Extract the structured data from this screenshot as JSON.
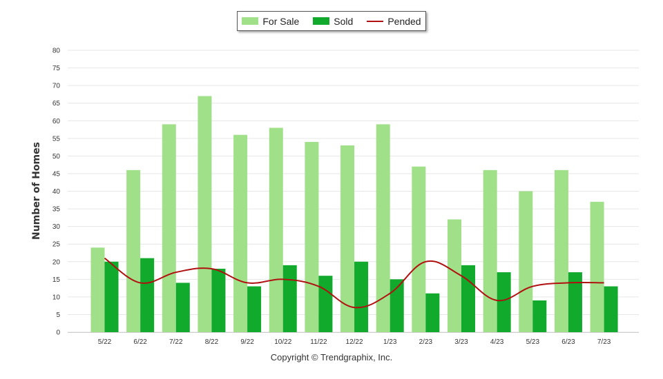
{
  "legend": {
    "for_sale": "For Sale",
    "sold": "Sold",
    "pended": "Pended"
  },
  "copyright": "Copyright © Trendgraphix, Inc.",
  "chart_data": {
    "type": "bar",
    "ylabel": "Number of Homes",
    "xlabel": "",
    "ylim": [
      0,
      80
    ],
    "ytick_step": 5,
    "grid": true,
    "legend_position": "top-center",
    "categories": [
      "5/22",
      "6/22",
      "7/22",
      "8/22",
      "9/22",
      "10/22",
      "11/22",
      "12/22",
      "1/23",
      "2/23",
      "3/23",
      "4/23",
      "5/23",
      "6/23",
      "7/23"
    ],
    "series": [
      {
        "name": "For Sale",
        "kind": "bar",
        "color": "#a0e088",
        "values": [
          24,
          46,
          59,
          67,
          56,
          58,
          54,
          53,
          59,
          47,
          32,
          46,
          40,
          46,
          37
        ]
      },
      {
        "name": "Sold",
        "kind": "bar",
        "color": "#11aa2c",
        "values": [
          20,
          21,
          14,
          18,
          13,
          19,
          16,
          20,
          15,
          11,
          19,
          17,
          9,
          17,
          13
        ]
      },
      {
        "name": "Pended",
        "kind": "line",
        "color": "#b01010",
        "values": [
          21,
          14,
          17,
          18,
          14,
          15,
          13,
          7,
          11,
          20,
          16,
          9,
          13,
          14,
          14
        ]
      }
    ]
  }
}
